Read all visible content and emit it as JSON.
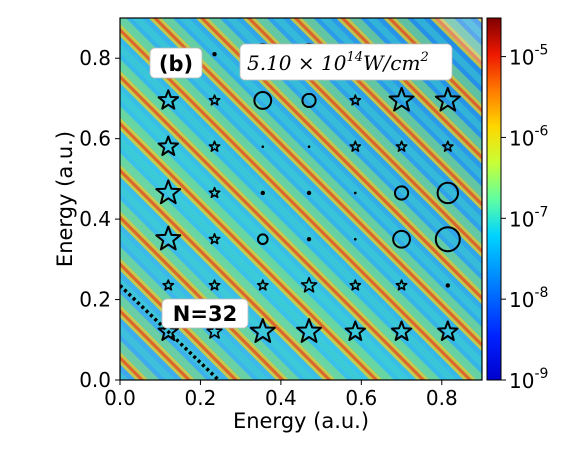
{
  "chart_data": {
    "type": "heatmap",
    "title": "",
    "xlabel": "Energy (a.u.)",
    "ylabel": "Energy (a.u.)",
    "xlim": [
      0.0,
      0.9
    ],
    "ylim": [
      0.0,
      0.9
    ],
    "x_ticks": [
      0.0,
      0.2,
      0.4,
      0.6,
      0.8
    ],
    "y_ticks": [
      0.0,
      0.2,
      0.4,
      0.6,
      0.8
    ],
    "x_tick_labels": [
      "0.0",
      "0.2",
      "0.4",
      "0.6",
      "0.8"
    ],
    "y_tick_labels": [
      "0.0",
      "0.2",
      "0.4",
      "0.6",
      "0.8"
    ],
    "colorbar": {
      "scale": "log",
      "range": [
        1e-09,
        3e-05
      ],
      "colormap": "jet",
      "ticks": [
        {
          "value": 1e-09,
          "base": "10",
          "exp": "-9"
        },
        {
          "value": 1e-08,
          "base": "10",
          "exp": "-8"
        },
        {
          "value": 1e-07,
          "base": "10",
          "exp": "-7"
        },
        {
          "value": 1e-06,
          "base": "10",
          "exp": "-6"
        },
        {
          "value": 1e-05,
          "base": "10",
          "exp": "-5"
        }
      ]
    },
    "photon_energy": 0.1165,
    "panel_label": "(b)",
    "intensity_label": {
      "mantissa": "5.10 × 10",
      "exp": "14",
      "unit": "W/cm",
      "unit_exp": "2"
    },
    "threshold_label": "N=32",
    "threshold_line": {
      "x": [
        0.0,
        0.245
      ],
      "y": [
        0.235,
        0.0
      ]
    },
    "grid": false,
    "markers": [
      {
        "x": 0.12,
        "y": 0.12,
        "shape": "star",
        "size": 3
      },
      {
        "x": 0.235,
        "y": 0.12,
        "shape": "star",
        "size": 2
      },
      {
        "x": 0.355,
        "y": 0.12,
        "shape": "star",
        "size": 4
      },
      {
        "x": 0.47,
        "y": 0.12,
        "shape": "star",
        "size": 4
      },
      {
        "x": 0.585,
        "y": 0.12,
        "shape": "star",
        "size": 3
      },
      {
        "x": 0.7,
        "y": 0.12,
        "shape": "star",
        "size": 3
      },
      {
        "x": 0.815,
        "y": 0.12,
        "shape": "star",
        "size": 3
      },
      {
        "x": 0.12,
        "y": 0.235,
        "shape": "star",
        "size": 1
      },
      {
        "x": 0.235,
        "y": 0.235,
        "shape": "star",
        "size": 1
      },
      {
        "x": 0.355,
        "y": 0.235,
        "shape": "star",
        "size": 1
      },
      {
        "x": 0.47,
        "y": 0.235,
        "shape": "star",
        "size": 2
      },
      {
        "x": 0.585,
        "y": 0.235,
        "shape": "star",
        "size": 1
      },
      {
        "x": 0.7,
        "y": 0.235,
        "shape": "star",
        "size": 1
      },
      {
        "x": 0.815,
        "y": 0.235,
        "shape": "dot",
        "size": 1
      },
      {
        "x": 0.12,
        "y": 0.35,
        "shape": "star",
        "size": 4
      },
      {
        "x": 0.235,
        "y": 0.35,
        "shape": "star",
        "size": 1
      },
      {
        "x": 0.355,
        "y": 0.35,
        "shape": "circle",
        "size": 1
      },
      {
        "x": 0.47,
        "y": 0.35,
        "shape": "dot",
        "size": 1
      },
      {
        "x": 0.585,
        "y": 0.35,
        "shape": "dot",
        "size": 0
      },
      {
        "x": 0.7,
        "y": 0.35,
        "shape": "circle",
        "size": 3
      },
      {
        "x": 0.815,
        "y": 0.35,
        "shape": "circle",
        "size": 5
      },
      {
        "x": 0.12,
        "y": 0.465,
        "shape": "star",
        "size": 4
      },
      {
        "x": 0.235,
        "y": 0.465,
        "shape": "star",
        "size": 1
      },
      {
        "x": 0.355,
        "y": 0.465,
        "shape": "dot",
        "size": 1
      },
      {
        "x": 0.47,
        "y": 0.465,
        "shape": "dot",
        "size": 1
      },
      {
        "x": 0.585,
        "y": 0.465,
        "shape": "dot",
        "size": 0
      },
      {
        "x": 0.7,
        "y": 0.465,
        "shape": "circle",
        "size": 2
      },
      {
        "x": 0.815,
        "y": 0.465,
        "shape": "circle",
        "size": 4
      },
      {
        "x": 0.12,
        "y": 0.58,
        "shape": "star",
        "size": 3
      },
      {
        "x": 0.235,
        "y": 0.58,
        "shape": "star",
        "size": 1
      },
      {
        "x": 0.355,
        "y": 0.58,
        "shape": "dot",
        "size": 0
      },
      {
        "x": 0.47,
        "y": 0.58,
        "shape": "dot",
        "size": 0
      },
      {
        "x": 0.585,
        "y": 0.58,
        "shape": "star",
        "size": 1
      },
      {
        "x": 0.7,
        "y": 0.58,
        "shape": "star",
        "size": 1
      },
      {
        "x": 0.815,
        "y": 0.58,
        "shape": "star",
        "size": 1
      },
      {
        "x": 0.12,
        "y": 0.695,
        "shape": "star",
        "size": 3
      },
      {
        "x": 0.235,
        "y": 0.695,
        "shape": "star",
        "size": 1
      },
      {
        "x": 0.355,
        "y": 0.695,
        "shape": "circle",
        "size": 3
      },
      {
        "x": 0.47,
        "y": 0.695,
        "shape": "circle",
        "size": 2
      },
      {
        "x": 0.585,
        "y": 0.695,
        "shape": "star",
        "size": 1
      },
      {
        "x": 0.7,
        "y": 0.695,
        "shape": "star",
        "size": 4
      },
      {
        "x": 0.815,
        "y": 0.695,
        "shape": "star",
        "size": 4
      },
      {
        "x": 0.235,
        "y": 0.81,
        "shape": "dot",
        "size": 1
      },
      {
        "x": 0.355,
        "y": 0.81,
        "shape": "circle",
        "size": 4
      },
      {
        "x": 0.47,
        "y": 0.81,
        "shape": "circle",
        "size": 4
      }
    ]
  }
}
